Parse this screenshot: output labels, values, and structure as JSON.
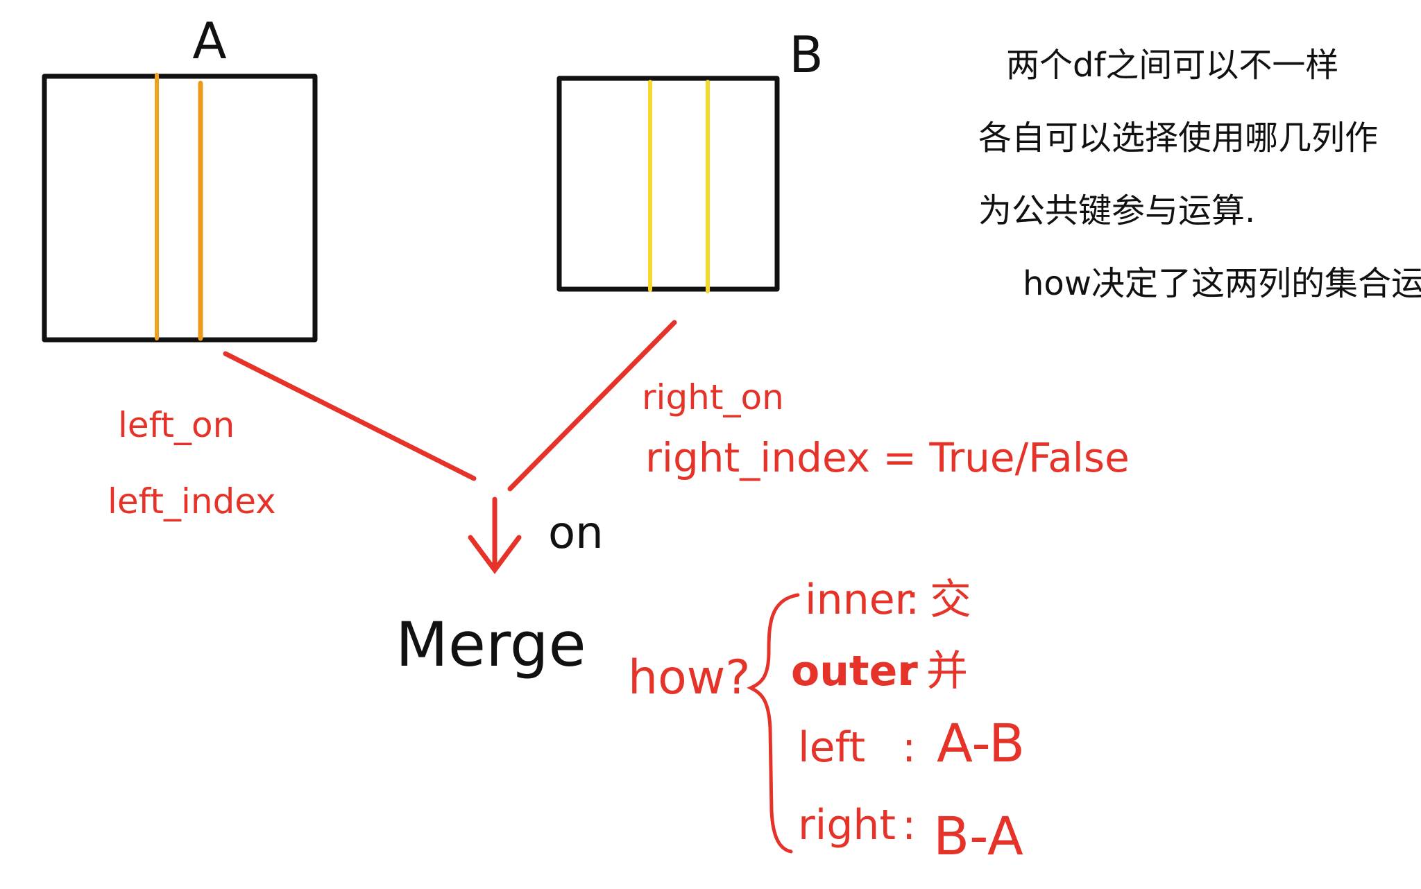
{
  "diagram": {
    "tables": [
      {
        "id": "A",
        "label": "A"
      },
      {
        "id": "B",
        "label": "B"
      }
    ],
    "note_lines": [
      "两个df之间可以不一样",
      "各自可以选择使用哪几列作",
      "为公共键参与运算.",
      "how决定了这两列的集合运算"
    ],
    "left_labels": [
      "left_on",
      "left_index"
    ],
    "right_labels": [
      "right_on",
      "right_index = True/False"
    ],
    "on_label": "on",
    "merge_label": "Merge",
    "how_label": "how?",
    "how_options": [
      {
        "key": "inner",
        "separator": ":",
        "value": "交"
      },
      {
        "key": "outer",
        "separator": ":",
        "value": "并"
      },
      {
        "key": "left",
        "separator": ":",
        "value": "A-B"
      },
      {
        "key": "right",
        "separator": ":",
        "value": "B-A"
      }
    ],
    "colors": {
      "ink": "#111111",
      "red": "#e5332a",
      "orange": "#f0a020",
      "yellow": "#f4d92a"
    }
  }
}
